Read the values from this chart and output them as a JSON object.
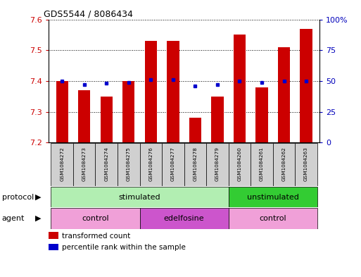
{
  "title": "GDS5544 / 8086434",
  "samples": [
    "GSM1084272",
    "GSM1084273",
    "GSM1084274",
    "GSM1084275",
    "GSM1084276",
    "GSM1084277",
    "GSM1084278",
    "GSM1084279",
    "GSM1084260",
    "GSM1084261",
    "GSM1084262",
    "GSM1084263"
  ],
  "red_values": [
    7.4,
    7.37,
    7.35,
    7.4,
    7.53,
    7.53,
    7.28,
    7.35,
    7.55,
    7.38,
    7.51,
    7.57
  ],
  "blue_values": [
    50,
    47,
    48,
    49,
    51,
    51,
    46,
    47,
    50,
    49,
    50,
    50
  ],
  "ylim": [
    7.2,
    7.6
  ],
  "ylim_right": [
    0,
    100
  ],
  "yticks_left": [
    7.2,
    7.3,
    7.4,
    7.5,
    7.6
  ],
  "yticks_right": [
    0,
    25,
    50,
    75,
    100
  ],
  "ytick_labels_right": [
    "0",
    "25",
    "50",
    "75",
    "100%"
  ],
  "bar_color": "#CC0000",
  "dot_color": "#0000CC",
  "protocol_stimulated_color": "#B2EEB2",
  "protocol_unstimulated_color": "#33CC33",
  "agent_control_color": "#F0A0D8",
  "agent_edelfosine_color": "#CC55CC",
  "sample_box_color": "#D0D0D0",
  "tick_color_left": "#CC0000",
  "tick_color_right": "#0000BB"
}
